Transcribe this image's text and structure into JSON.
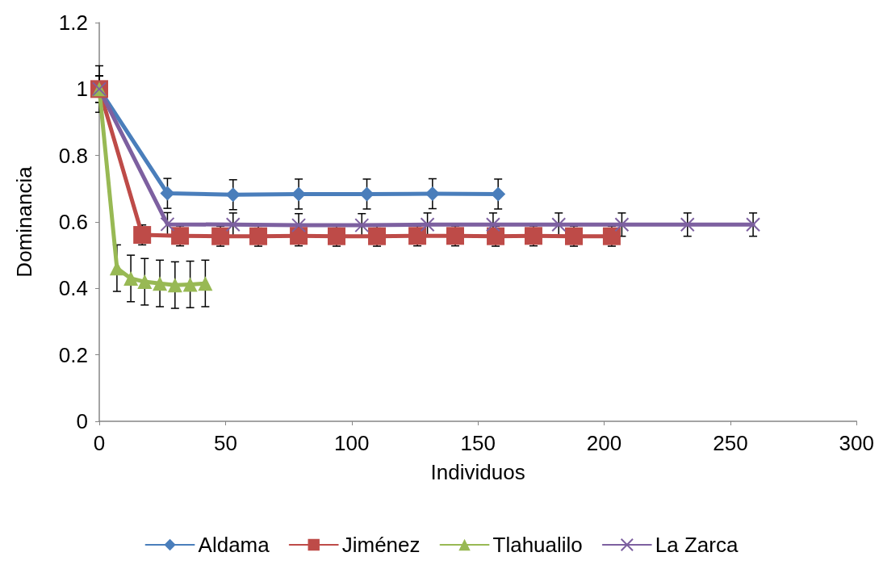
{
  "chart_data": {
    "type": "line",
    "xlabel": "Individuos",
    "ylabel": "Dominancia",
    "xlim": [
      0,
      300
    ],
    "xticks": [
      0,
      50,
      100,
      150,
      200,
      250,
      300
    ],
    "ylim": [
      0,
      1.2
    ],
    "yticks": [
      0,
      0.2,
      0.4,
      0.6,
      0.8,
      1,
      1.2
    ],
    "grid": false,
    "legend": "bottom",
    "line_style": "solid",
    "series": [
      {
        "name": "Aldama",
        "color": "#4a7ebb",
        "marker": "diamond",
        "x": [
          0,
          27,
          53,
          79,
          106,
          132,
          158
        ],
        "values": [
          1,
          0.686,
          0.682,
          0.684,
          0.684,
          0.685,
          0.684
        ],
        "errors": [
          0.04,
          0.045,
          0.045,
          0.045,
          0.045,
          0.045,
          0.045
        ]
      },
      {
        "name": "Jiménez",
        "color": "#be4b48",
        "marker": "square",
        "x": [
          0,
          17,
          32,
          48,
          63,
          79,
          94,
          110,
          126,
          141,
          157,
          172,
          188,
          203
        ],
        "values": [
          1,
          0.561,
          0.558,
          0.557,
          0.557,
          0.558,
          0.557,
          0.557,
          0.558,
          0.558,
          0.557,
          0.558,
          0.557,
          0.557
        ],
        "errors": [
          0.04,
          0.03,
          0.03,
          0.03,
          0.03,
          0.03,
          0.03,
          0.03,
          0.03,
          0.03,
          0.03,
          0.03,
          0.03,
          0.03
        ]
      },
      {
        "name": "Tlahualilo",
        "color": "#98b954",
        "marker": "triangle",
        "x": [
          0,
          7,
          12.5,
          18,
          24,
          30,
          36,
          42
        ],
        "values": [
          1,
          0.461,
          0.43,
          0.42,
          0.415,
          0.41,
          0.412,
          0.415
        ],
        "errors": [
          0.07,
          0.07,
          0.07,
          0.07,
          0.07,
          0.07,
          0.07,
          0.07
        ]
      },
      {
        "name": "La Zarca",
        "color": "#7d60a0",
        "marker": "cross",
        "x": [
          0,
          27,
          53,
          79,
          104,
          130,
          156,
          182,
          207,
          233,
          259
        ],
        "values": [
          1,
          0.593,
          0.592,
          0.59,
          0.59,
          0.592,
          0.592,
          0.592,
          0.592,
          0.592,
          0.592
        ],
        "errors": [
          0.04,
          0.035,
          0.035,
          0.035,
          0.035,
          0.035,
          0.035,
          0.035,
          0.035,
          0.035,
          0.035
        ]
      }
    ]
  }
}
